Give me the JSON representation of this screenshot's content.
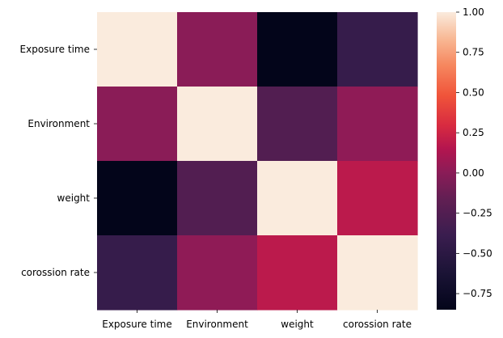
{
  "chart_data": {
    "type": "heatmap",
    "title": "",
    "xlabel": "",
    "ylabel": "",
    "rows": [
      "Exposure time",
      "Environment",
      "weight",
      "corossion rate"
    ],
    "cols": [
      "Exposure time",
      "Environment",
      "weight",
      "corossion rate"
    ],
    "values": [
      [
        1.0,
        0.0,
        -0.85,
        -0.42
      ],
      [
        0.0,
        1.0,
        -0.25,
        0.02
      ],
      [
        -0.85,
        -0.25,
        1.0,
        0.18
      ],
      [
        -0.42,
        0.02,
        0.18,
        1.0
      ]
    ],
    "colorbar": {
      "vmin": -0.85,
      "vmax": 1.0,
      "ticks": [
        1.0,
        0.75,
        0.5,
        0.25,
        0.0,
        -0.25,
        -0.5,
        -0.75
      ],
      "tick_labels": [
        "1.00",
        "0.75",
        "0.50",
        "0.25",
        "0.00",
        "−0.25",
        "−0.50",
        "−0.75"
      ],
      "colormap": "rocket"
    },
    "grid": false,
    "legend": "colorbar-right"
  }
}
